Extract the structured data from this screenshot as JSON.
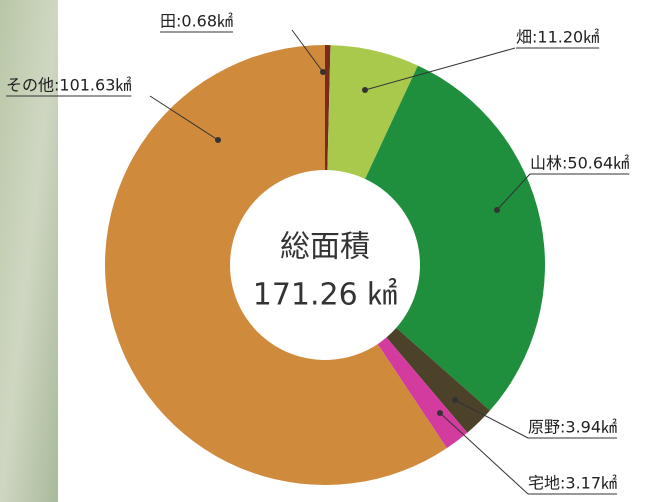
{
  "chart_data": {
    "type": "donut",
    "value_labels": [
      "田:0.68㎢",
      "畑:11.20㎢",
      "山林:50.64㎢",
      "原野:3.94㎢",
      "宅地:3.17㎢",
      "その他:101.63㎢"
    ],
    "values": [
      0.68,
      11.2,
      50.64,
      3.94,
      3.17,
      101.63
    ],
    "colors": [
      "#7a2a1a",
      "#a9c94c",
      "#1f8f3e",
      "#4b4229",
      "#d33b9f",
      "#d08a3b"
    ],
    "center_text": [
      "総面積",
      "171.26 ㎢"
    ]
  }
}
